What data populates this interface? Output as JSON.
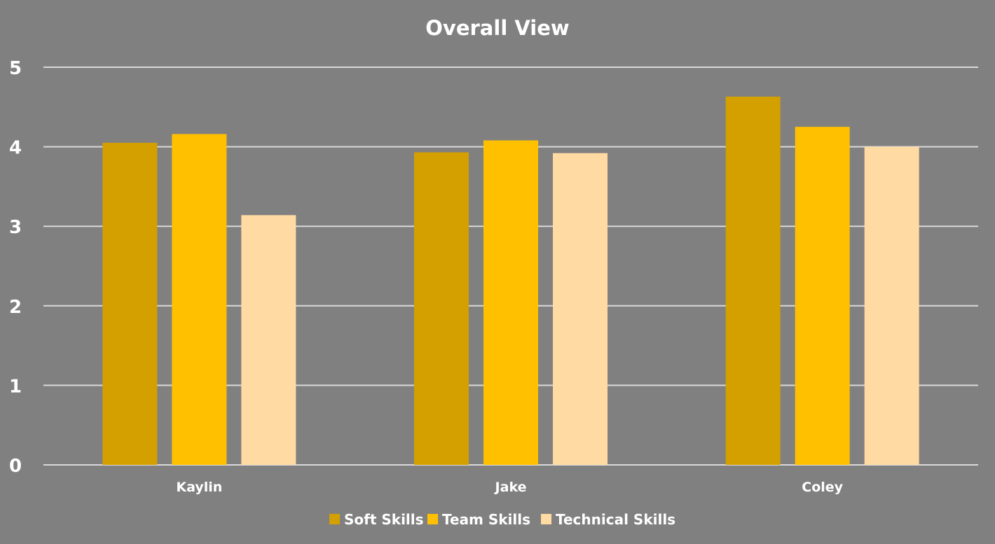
{
  "chart_data": {
    "type": "bar",
    "title": "Overall View",
    "categories": [
      "Kaylin",
      "Jake",
      "Coley"
    ],
    "series": [
      {
        "name": "Soft Skills",
        "color": "#D4A000",
        "values": [
          4.05,
          3.93,
          4.63
        ]
      },
      {
        "name": "Team Skills",
        "color": "#FFC000",
        "values": [
          4.16,
          4.08,
          4.25
        ]
      },
      {
        "name": "Technical Skills",
        "color": "#FFDAA2",
        "values": [
          3.14,
          3.92,
          4.0
        ]
      }
    ],
    "ylim": [
      0,
      5
    ],
    "yticks": [
      0,
      1,
      2,
      3,
      4,
      5
    ],
    "grid": true,
    "legend_position": "bottom",
    "colors": {
      "background": "#808080",
      "gridline": "#d9d9d9",
      "text": "#ffffff"
    }
  }
}
